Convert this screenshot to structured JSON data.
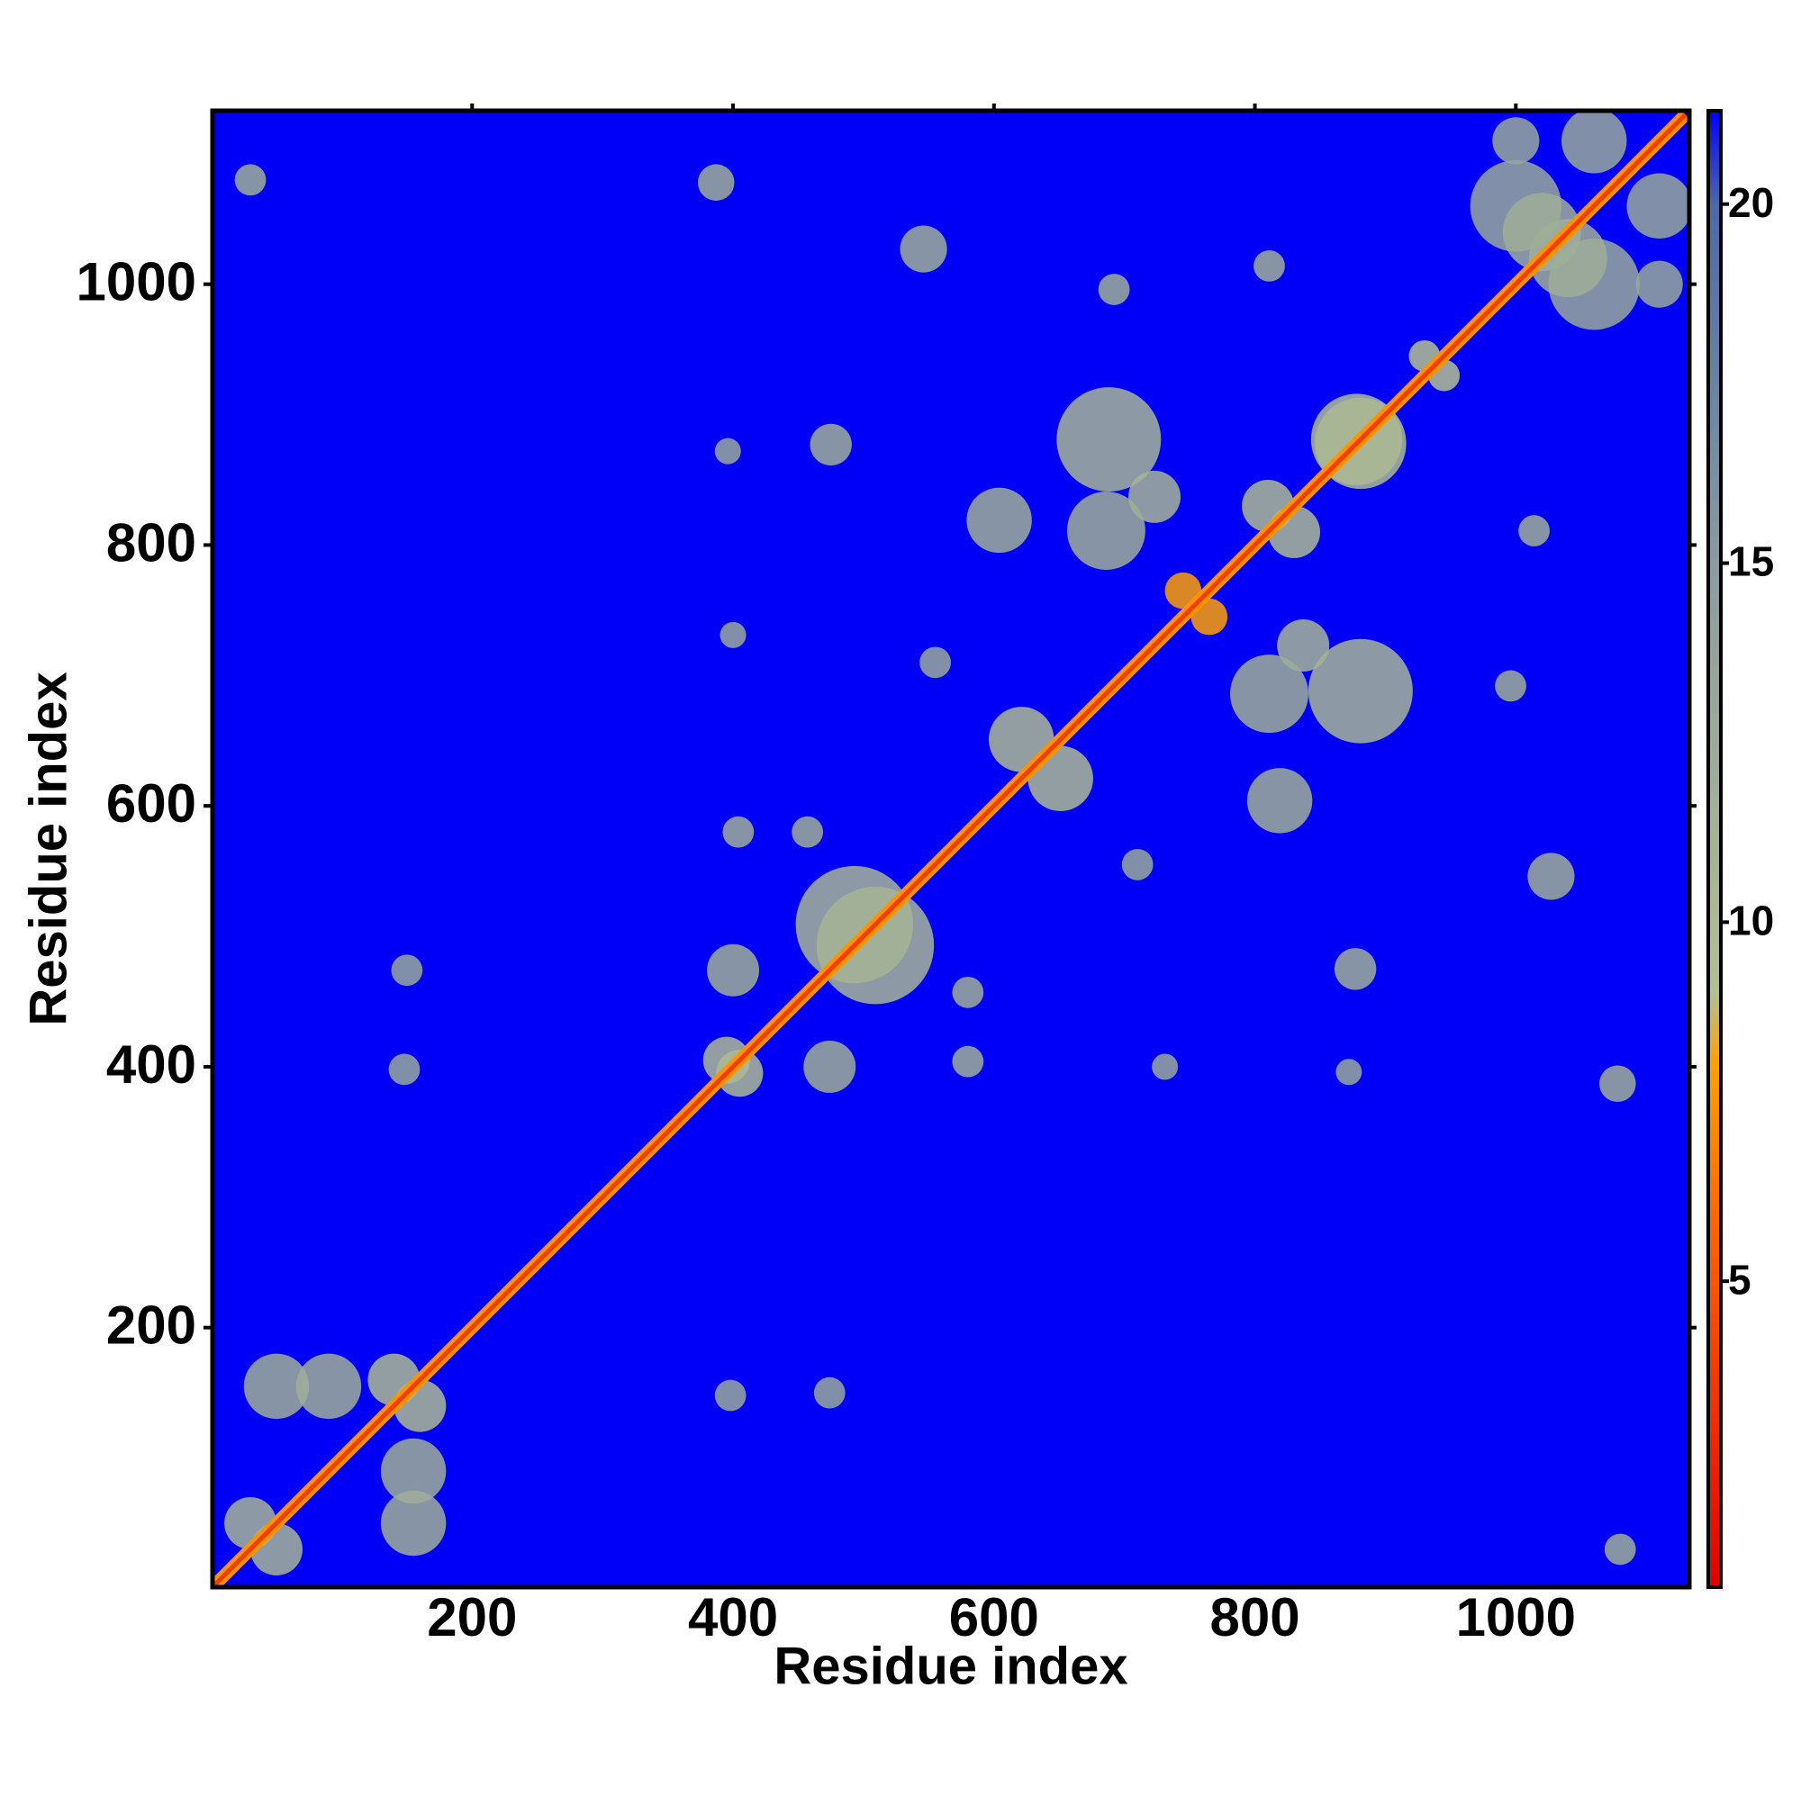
{
  "chart_data": {
    "type": "heatmap",
    "xlabel": "Residue index",
    "ylabel": "Residue index",
    "xlim": [
      1,
      1133
    ],
    "ylim": [
      1,
      1133
    ],
    "xticks": [
      200,
      400,
      600,
      800,
      1000
    ],
    "yticks": [
      200,
      400,
      600,
      800,
      1000
    ],
    "background_value": 21.3,
    "diagonal_range": [
      1,
      1130
    ],
    "diagonal_values": [
      7.5,
      3.8
    ],
    "patches": {
      "x": [
        30,
        387,
        546,
        692,
        811,
        1000,
        1060,
        1000,
        475,
        396,
        604,
        688,
        723,
        878,
        400,
        493,
        400,
        404,
        457,
        150,
        148,
        50,
        90,
        621,
        686,
        555,
        30,
        140,
        395,
        810,
        930,
        745,
        1020
      ],
      "y": [
        1080,
        1078,
        1027,
        996,
        1014,
        1060,
        1110,
        1110,
        877,
        872,
        819,
        881,
        837,
        881,
        731,
        509,
        474,
        580,
        580,
        474,
        398,
        155,
        155,
        651,
        811,
        710,
        50,
        160,
        405,
        830,
        945,
        765,
        1040
      ],
      "size": [
        12,
        14,
        18,
        12,
        12,
        35,
        25,
        18,
        16,
        10,
        25,
        40,
        20,
        35,
        10,
        45,
        20,
        12,
        12,
        12,
        12,
        25,
        25,
        25,
        30,
        12,
        20,
        20,
        18,
        20,
        12,
        14,
        30
      ],
      "values": [
        12,
        12,
        12,
        12,
        12,
        13,
        13,
        13,
        12,
        13,
        12,
        11,
        11,
        10,
        13,
        11,
        12,
        12,
        12,
        13,
        13,
        12,
        12,
        10,
        12,
        13,
        11,
        10,
        10,
        10,
        9,
        8,
        12
      ]
    },
    "colorbar": {
      "clim": [
        0.74,
        21.3
      ],
      "ticks": [
        5,
        10,
        15,
        20
      ],
      "colorscale": [
        [
          0.74,
          "#e00000"
        ],
        [
          6,
          "#ff6a00"
        ],
        [
          8,
          "#ffa000"
        ],
        [
          9,
          "#b4c090"
        ],
        [
          15,
          "#8a9ca0"
        ],
        [
          20,
          "#4a6aa8"
        ],
        [
          21.3,
          "#0000f8"
        ]
      ]
    }
  }
}
